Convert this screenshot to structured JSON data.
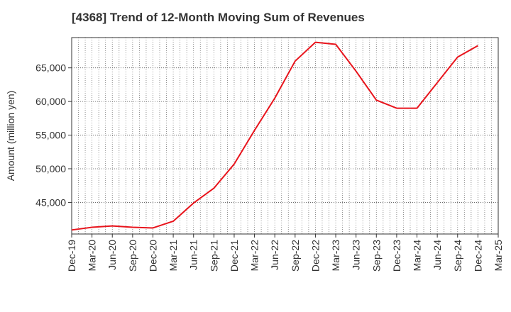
{
  "chart_data": {
    "type": "line",
    "title": "[4368]  Trend of 12-Month Moving Sum of Revenues",
    "xlabel": "",
    "ylabel": "Amount (million yen)",
    "ylim": [
      40300,
      69500
    ],
    "yticks": [
      45000,
      50000,
      55000,
      60000,
      65000
    ],
    "ytick_labels": [
      "45,000",
      "50,000",
      "55,000",
      "60,000",
      "65,000"
    ],
    "x_tick_labels": [
      "Dec-19",
      "Mar-20",
      "Jun-20",
      "Sep-20",
      "Dec-20",
      "Mar-21",
      "Jun-21",
      "Sep-21",
      "Dec-21",
      "Mar-22",
      "Jun-22",
      "Sep-22",
      "Dec-22",
      "Mar-23",
      "Jun-23",
      "Sep-23",
      "Dec-23",
      "Mar-24",
      "Jun-24",
      "Sep-24",
      "Dec-24",
      "Mar-25"
    ],
    "grid": true,
    "line_color": "#e8141c",
    "series": [
      {
        "x": [
          "Dec-19",
          "Mar-20",
          "Jun-20",
          "Sep-20",
          "Dec-20",
          "Mar-21",
          "Jun-21",
          "Sep-21",
          "Dec-21",
          "Mar-22",
          "Jun-22",
          "Sep-22",
          "Dec-22",
          "Mar-23",
          "Jun-23",
          "Sep-23",
          "Dec-23",
          "Mar-24",
          "Jun-24",
          "Sep-24",
          "Dec-24"
        ],
        "values": [
          40900,
          41300,
          41500,
          41300,
          41200,
          42200,
          44900,
          47100,
          50700,
          55700,
          60500,
          66000,
          68800,
          68500,
          64500,
          60200,
          59000,
          59000,
          62800,
          66600,
          68300
        ]
      }
    ]
  }
}
